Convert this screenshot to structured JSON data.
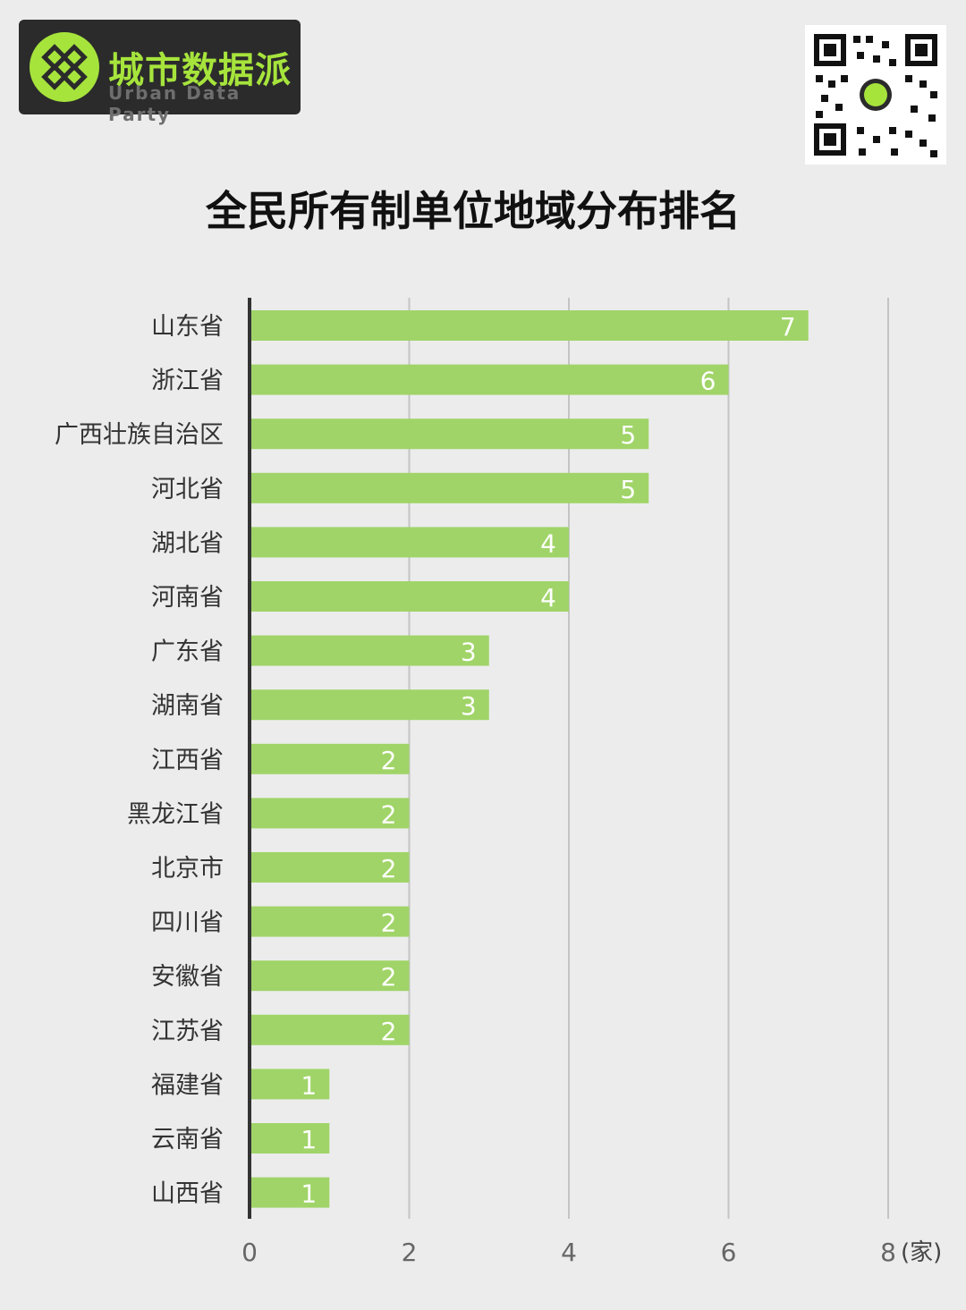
{
  "brand": {
    "name_cn": "城市数据派",
    "name_en": "Urban Data Party",
    "accent_color": "#a6e43c",
    "logo_bg": "#2b2b2b"
  },
  "qr_code": {
    "icon": "qr-code-icon"
  },
  "chart_data": {
    "type": "bar",
    "orientation": "horizontal",
    "title": "全民所有制单位地域分布排名",
    "categories": [
      "山东省",
      "浙江省",
      "广西壮族自治区",
      "河北省",
      "湖北省",
      "河南省",
      "广东省",
      "湖南省",
      "江西省",
      "黑龙江省",
      "北京市",
      "四川省",
      "安徽省",
      "江苏省",
      "福建省",
      "云南省",
      "山西省"
    ],
    "values": [
      7,
      6,
      5,
      5,
      4,
      4,
      3,
      3,
      2,
      2,
      2,
      2,
      2,
      2,
      1,
      1,
      1
    ],
    "xlim": [
      0,
      8
    ],
    "xticks": [
      0,
      2,
      4,
      6,
      8
    ],
    "xunit": "(家)",
    "bar_color": "#a0d468",
    "grid": true,
    "data_labels": true
  }
}
